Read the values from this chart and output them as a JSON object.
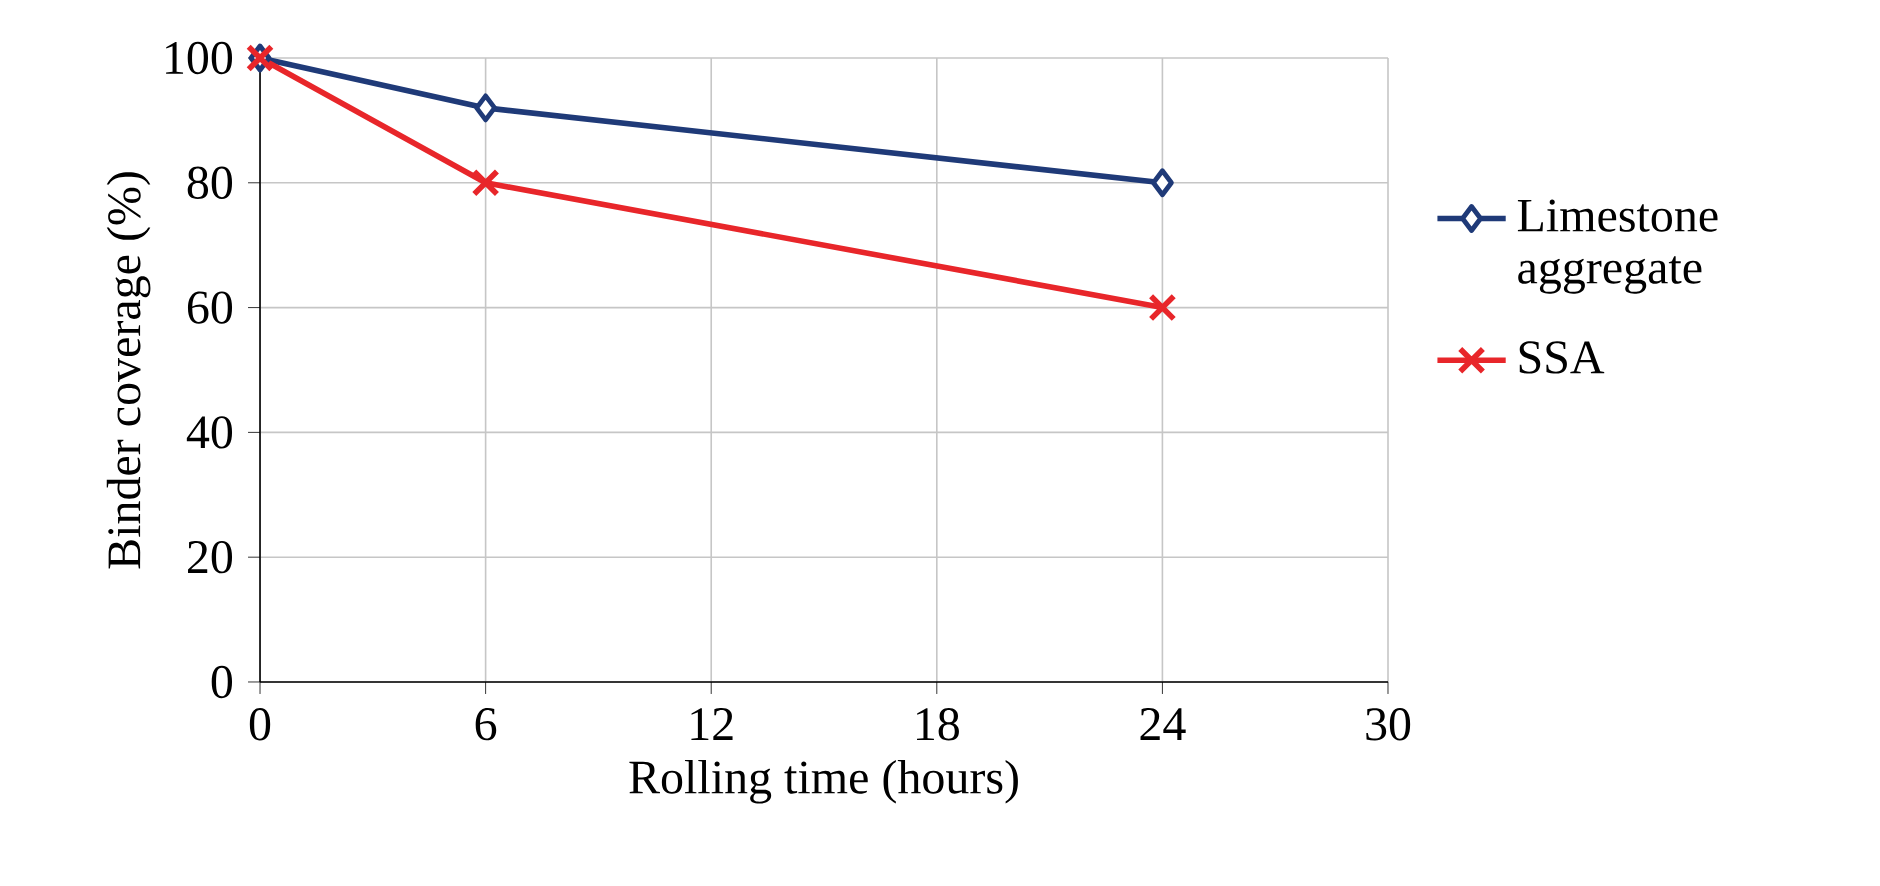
{
  "chart_data": {
    "type": "line",
    "xlabel": "Rolling time (hours)",
    "ylabel": "Binder coverage (%)",
    "xlim": [
      0,
      30
    ],
    "xticks": [
      0,
      6,
      12,
      18,
      24,
      30
    ],
    "ylim": [
      0,
      100
    ],
    "yticks": [
      0,
      20,
      40,
      60,
      80,
      100
    ],
    "grid": true,
    "legend": "right",
    "line_style": "solid",
    "series": [
      {
        "name": "Limestone aggregate",
        "color": "#1f3a78",
        "marker": "diamond",
        "x": [
          0,
          6,
          24
        ],
        "values": [
          100,
          92,
          80
        ]
      },
      {
        "name": "SSA",
        "color": "#e8262a",
        "marker": "cross",
        "x": [
          0,
          6,
          24
        ],
        "values": [
          100,
          80,
          60
        ]
      }
    ]
  }
}
